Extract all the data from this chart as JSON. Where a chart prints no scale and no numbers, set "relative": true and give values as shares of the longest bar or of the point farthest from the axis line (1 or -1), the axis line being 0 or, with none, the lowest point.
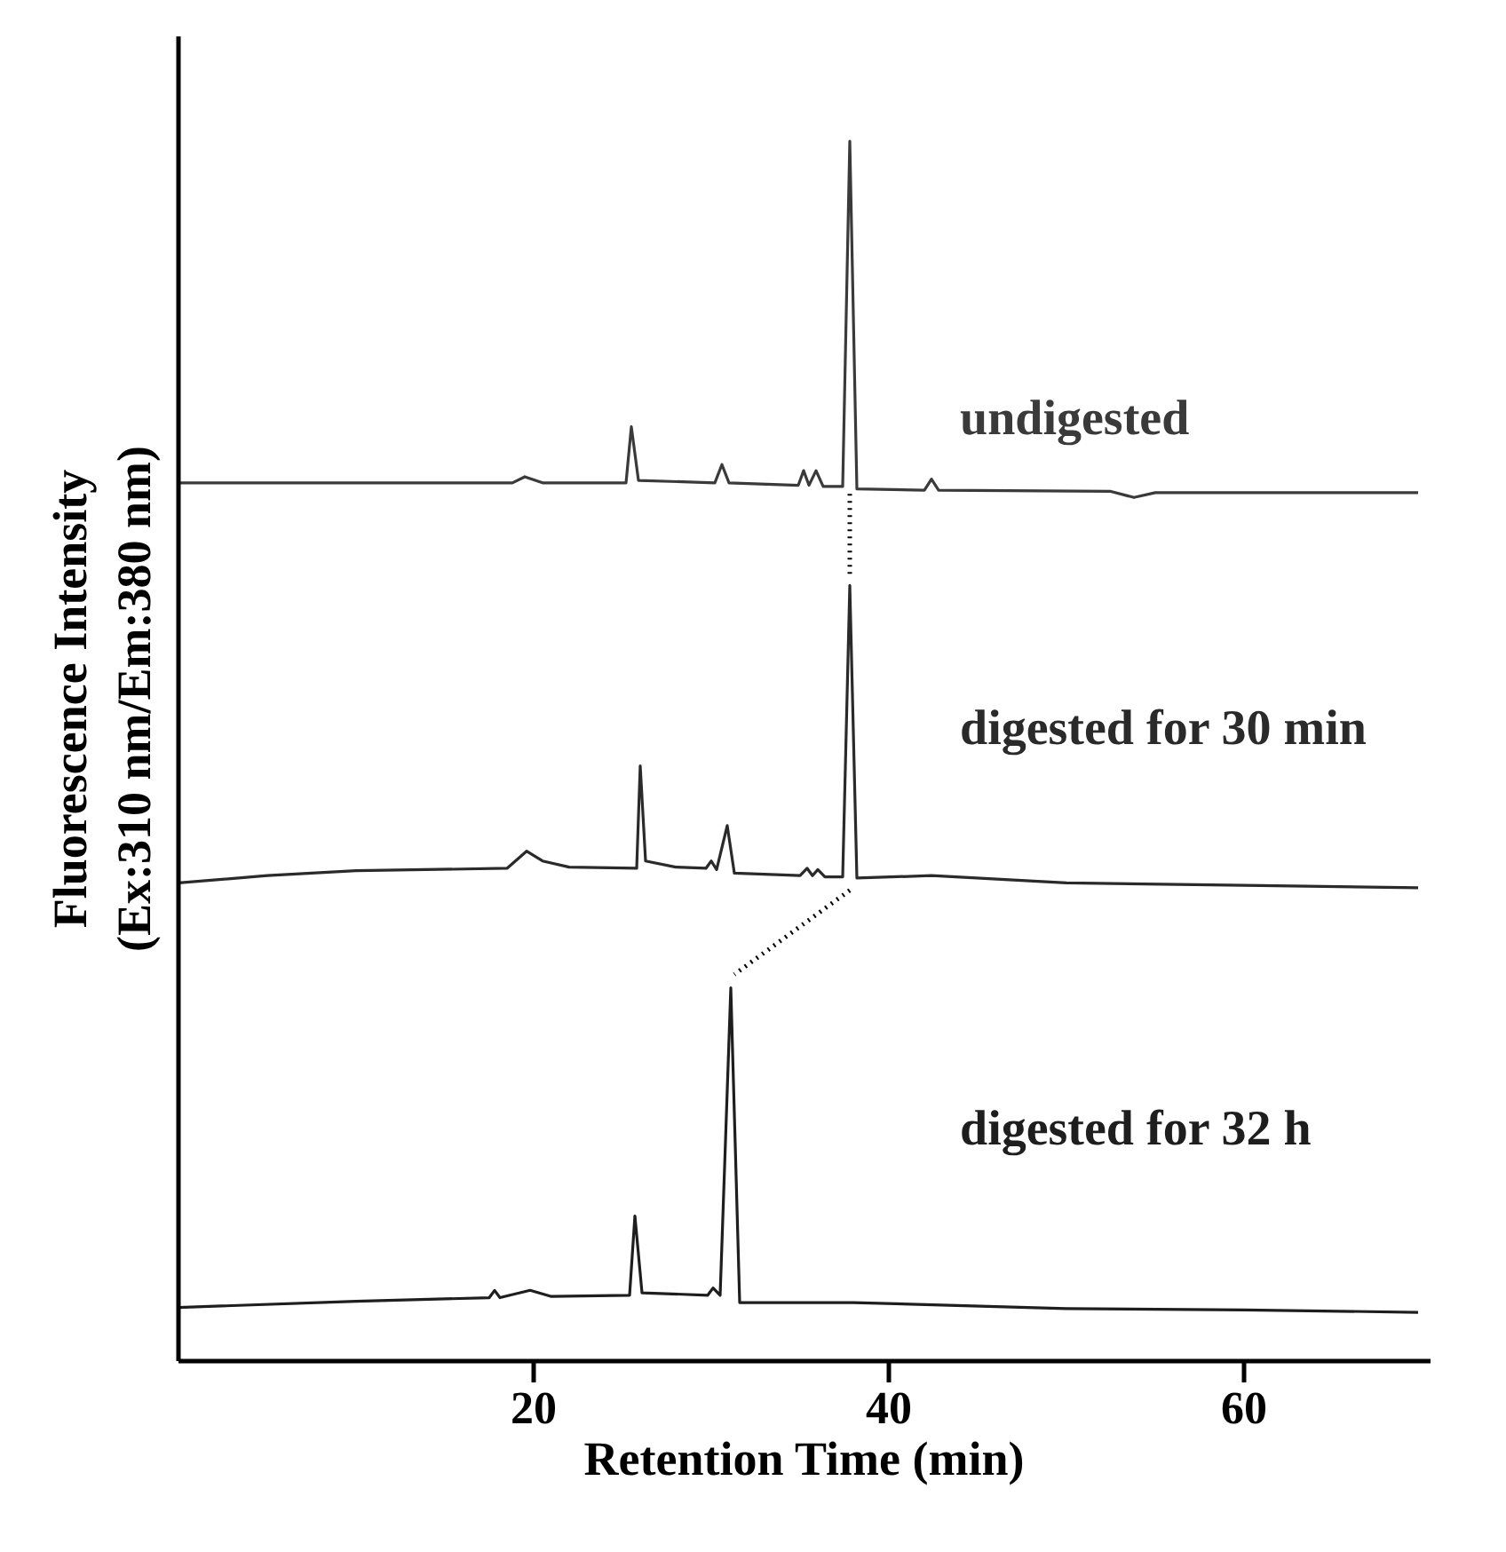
{
  "chart_data": {
    "type": "line",
    "relative": true,
    "xlabel": "Retention Time (min)",
    "ylabel": "Fluorescence Intensity\n(Ex:310 nm/Em:380 nm)",
    "xlim": [
      0,
      70.5
    ],
    "xticks": [
      20,
      40,
      60
    ],
    "grid": false,
    "marker": "none",
    "line_style": "solid",
    "series": [
      {
        "name": "undigested",
        "color": "#3a3a3a",
        "x": [
          0,
          10,
          18.8,
          19.5,
          20.5,
          25.2,
          25.5,
          25.9,
          30.2,
          30.6,
          31.0,
          34.9,
          35.2,
          35.5,
          35.9,
          36.3,
          37.4,
          37.8,
          38.2,
          42.0,
          42.4,
          42.8,
          52.5,
          53.8,
          55.0,
          69.8
        ],
        "values": [
          0.72,
          0.72,
          0.72,
          0.725,
          0.72,
          0.72,
          0.766,
          0.722,
          0.72,
          0.735,
          0.72,
          0.718,
          0.73,
          0.718,
          0.73,
          0.717,
          0.717,
          1.0,
          0.715,
          0.714,
          0.723,
          0.714,
          0.713,
          0.708,
          0.712,
          0.712
        ]
      },
      {
        "name": "digested for 30 min",
        "color": "#2a2a2a",
        "x": [
          0,
          5,
          10,
          18.5,
          19.6,
          20.5,
          22,
          25.8,
          26.0,
          26.3,
          28,
          29.7,
          30.0,
          30.3,
          30.9,
          31.3,
          35.0,
          35.4,
          35.7,
          36.0,
          36.4,
          37.4,
          37.8,
          38.2,
          42.4,
          50,
          60,
          69.8
        ],
        "values": [
          0.392,
          0.398,
          0.402,
          0.404,
          0.418,
          0.41,
          0.405,
          0.404,
          0.488,
          0.41,
          0.405,
          0.404,
          0.41,
          0.403,
          0.439,
          0.4,
          0.398,
          0.404,
          0.398,
          0.403,
          0.397,
          0.397,
          0.636,
          0.396,
          0.398,
          0.392,
          0.39,
          0.388
        ]
      },
      {
        "name": "digested for 32 h",
        "color": "#1e1e1e",
        "x": [
          0,
          10,
          17.5,
          17.8,
          18.1,
          19.8,
          21,
          25.4,
          25.7,
          26.1,
          29.8,
          30.1,
          30.5,
          31.1,
          31.6,
          38,
          50,
          60,
          69.8
        ],
        "values": [
          0.044,
          0.049,
          0.052,
          0.058,
          0.052,
          0.058,
          0.053,
          0.054,
          0.119,
          0.056,
          0.054,
          0.06,
          0.054,
          0.306,
          0.048,
          0.048,
          0.043,
          0.042,
          0.04
        ]
      },
      {
        "color": "#000000",
        "line_style": "dotted",
        "x": [
          37.8,
          37.8
        ],
        "values": [
          0.711,
          0.645
        ]
      },
      {
        "color": "#000000",
        "line_style": "dotted",
        "x": [
          37.8,
          31.3
        ],
        "values": [
          0.386,
          0.317
        ]
      }
    ]
  }
}
